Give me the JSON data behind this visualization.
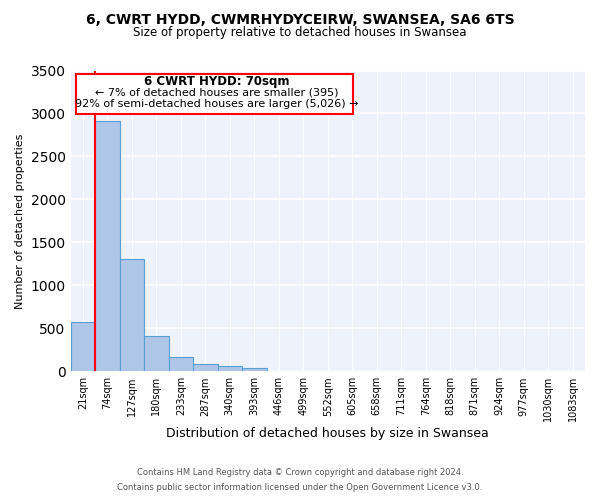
{
  "title": "6, CWRT HYDD, CWMRHYDYCEIRW, SWANSEA, SA6 6TS",
  "subtitle": "Size of property relative to detached houses in Swansea",
  "xlabel": "Distribution of detached houses by size in Swansea",
  "ylabel": "Number of detached properties",
  "bar_labels": [
    "21sqm",
    "74sqm",
    "127sqm",
    "180sqm",
    "233sqm",
    "287sqm",
    "340sqm",
    "393sqm",
    "446sqm",
    "499sqm",
    "552sqm",
    "605sqm",
    "658sqm",
    "711sqm",
    "764sqm",
    "818sqm",
    "871sqm",
    "924sqm",
    "977sqm",
    "1030sqm",
    "1083sqm"
  ],
  "bar_values": [
    575,
    2910,
    1310,
    415,
    165,
    90,
    58,
    42,
    0,
    0,
    0,
    0,
    0,
    0,
    0,
    0,
    0,
    0,
    0,
    0,
    0
  ],
  "bar_color": "#aec6e8",
  "bar_edgecolor": "#5a9fd4",
  "background_color": "#eef3fb",
  "ylim": [
    0,
    3500
  ],
  "yticks": [
    0,
    500,
    1000,
    1500,
    2000,
    2500,
    3000,
    3500
  ],
  "red_line_x": 0.5,
  "annotation_title": "6 CWRT HYDD: 70sqm",
  "annotation_line1": "← 7% of detached houses are smaller (395)",
  "annotation_line2": "92% of semi-detached houses are larger (5,026) →",
  "footer1": "Contains HM Land Registry data © Crown copyright and database right 2024.",
  "footer2": "Contains public sector information licensed under the Open Government Licence v3.0."
}
